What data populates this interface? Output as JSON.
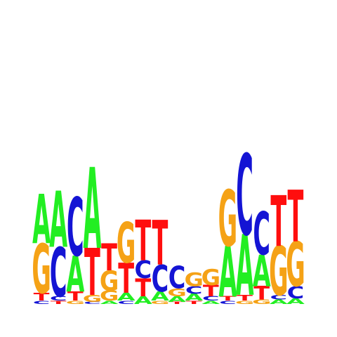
{
  "colors": {
    "A": "#22ee22",
    "C": "#1414d4",
    "G": "#f5a216",
    "T": "#ff0e0e"
  },
  "logo": {
    "columns": [
      {
        "letters": [
          {
            "base": "G",
            "height": 0.44
          },
          {
            "base": "A",
            "height": 0.44
          },
          {
            "base": "T",
            "height": 0.07
          },
          {
            "base": "C",
            "height": 0.03
          }
        ]
      },
      {
        "letters": [
          {
            "base": "A",
            "height": 0.5
          },
          {
            "base": "C",
            "height": 0.44
          },
          {
            "base": "C",
            "height": 0.04
          },
          {
            "base": "T",
            "height": 0.03
          }
        ]
      },
      {
        "letters": [
          {
            "base": "C",
            "height": 0.52
          },
          {
            "base": "A",
            "height": 0.32
          },
          {
            "base": "T",
            "height": 0.08
          },
          {
            "base": "G",
            "height": 0.03
          }
        ]
      },
      {
        "letters": [
          {
            "base": "A",
            "height": 0.72
          },
          {
            "base": "T",
            "height": 0.42
          },
          {
            "base": "G",
            "height": 0.06
          },
          {
            "base": "C",
            "height": 0.02
          }
        ]
      },
      {
        "letters": [
          {
            "base": "G",
            "height": 0.18
          },
          {
            "base": "T",
            "height": 0.24
          },
          {
            "base": "G",
            "height": 0.09
          },
          {
            "base": "A",
            "height": 0.03
          }
        ]
      },
      {
        "letters": [
          {
            "base": "G",
            "height": 0.36
          },
          {
            "base": "T",
            "height": 0.27
          },
          {
            "base": "A",
            "height": 0.07
          },
          {
            "base": "C",
            "height": 0.03
          }
        ]
      },
      {
        "letters": [
          {
            "base": "T",
            "height": 0.36
          },
          {
            "base": "T",
            "height": 0.16
          },
          {
            "base": "C",
            "height": 0.16
          },
          {
            "base": "A",
            "height": 0.07
          }
        ]
      },
      {
        "letters": [
          {
            "base": "T",
            "height": 0.4
          },
          {
            "base": "C",
            "height": 0.24
          },
          {
            "base": "A",
            "height": 0.08
          },
          {
            "base": "G",
            "height": 0.03
          }
        ]
      },
      {
        "letters": [
          {
            "base": "C",
            "height": 0.2
          },
          {
            "base": "G",
            "height": 0.07
          },
          {
            "base": "A",
            "height": 0.05
          },
          {
            "base": "T",
            "height": 0.02
          }
        ]
      },
      {
        "letters": [
          {
            "base": "G",
            "height": 0.12
          },
          {
            "base": "C",
            "height": 0.07
          },
          {
            "base": "A",
            "height": 0.06
          },
          {
            "base": "T",
            "height": 0.03
          }
        ]
      },
      {
        "letters": [
          {
            "base": "G",
            "height": 0.14
          },
          {
            "base": "T",
            "height": 0.1
          },
          {
            "base": "C",
            "height": 0.04
          },
          {
            "base": "A",
            "height": 0.03
          }
        ]
      },
      {
        "letters": [
          {
            "base": "G",
            "height": 0.5
          },
          {
            "base": "A",
            "height": 0.45
          },
          {
            "base": "T",
            "height": 0.04
          },
          {
            "base": "C",
            "height": 0.03
          }
        ]
      },
      {
        "letters": [
          {
            "base": "C",
            "height": 0.72
          },
          {
            "base": "A",
            "height": 0.54
          },
          {
            "base": "T",
            "height": 0.05
          },
          {
            "base": "G",
            "height": 0.03
          }
        ]
      },
      {
        "letters": [
          {
            "base": "C",
            "height": 0.38
          },
          {
            "base": "A",
            "height": 0.28
          },
          {
            "base": "T",
            "height": 0.12
          },
          {
            "base": "G",
            "height": 0.04
          }
        ]
      },
      {
        "letters": [
          {
            "base": "G",
            "height": 0.44
          },
          {
            "base": "T",
            "height": 0.45
          },
          {
            "base": "A",
            "height": 0.04
          },
          {
            "base": "C",
            "height": 0.04
          }
        ]
      },
      {
        "letters": [
          {
            "base": "G",
            "height": 0.4
          },
          {
            "base": "T",
            "height": 0.46
          },
          {
            "base": "C",
            "height": 0.11
          },
          {
            "base": "A",
            "height": 0.05
          }
        ]
      }
    ]
  }
}
